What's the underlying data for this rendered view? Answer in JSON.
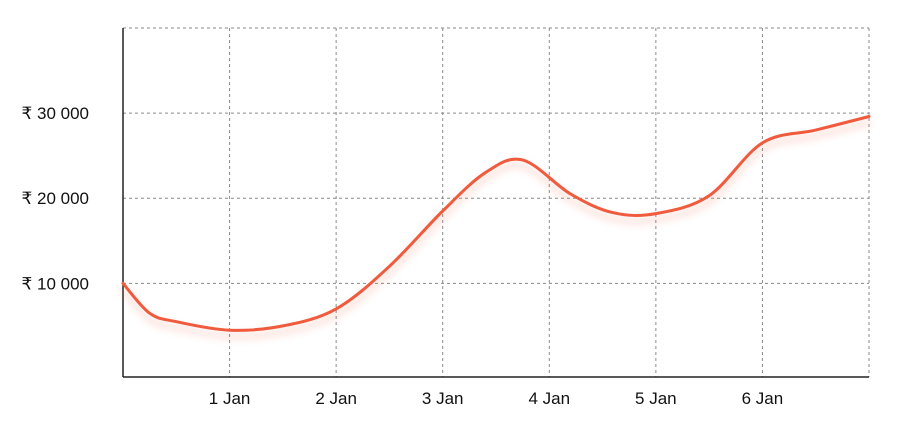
{
  "chart_data": {
    "type": "line",
    "title": "",
    "xlabel": "",
    "ylabel": "",
    "x_tick_labels": [
      "1 Jan",
      "2 Jan",
      "3 Jan",
      "4 Jan",
      "5 Jan",
      "6 Jan"
    ],
    "y_tick_labels": [
      "₹ 10 000",
      "₹ 20 000",
      "₹ 30 000"
    ],
    "y_ticks": [
      10000,
      20000,
      30000
    ],
    "xlim": [
      0,
      7
    ],
    "ylim": [
      -1000,
      40000
    ],
    "grid": true,
    "line_color": "#f05a3c",
    "series": [
      {
        "x": [
          0,
          0.25,
          0.5,
          1,
          1.5,
          2,
          2.5,
          3,
          3.4,
          3.75,
          4.2,
          4.6,
          5.0,
          5.5,
          6.0,
          6.5,
          7.0
        ],
        "values": [
          10000,
          6500,
          5500,
          4500,
          5000,
          7000,
          12000,
          18500,
          23000,
          24500,
          20500,
          18300,
          18200,
          20300,
          26500,
          28000,
          29600
        ]
      }
    ]
  }
}
